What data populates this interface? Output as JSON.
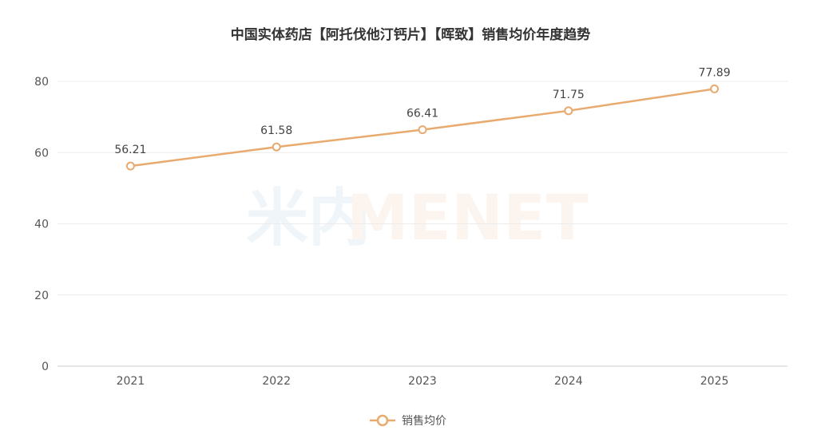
{
  "chart_data": {
    "type": "line",
    "title": "中国实体药店【阿托伐他汀钙片】【晖致】销售均价年度趋势",
    "categories": [
      "2021",
      "2022",
      "2023",
      "2024",
      "2025"
    ],
    "series": [
      {
        "name": "销售均价",
        "values": [
          56.21,
          61.58,
          66.41,
          71.75,
          77.89
        ],
        "color": "#E8AA6E"
      }
    ],
    "ylim": [
      0,
      80
    ],
    "yticks": [
      0,
      20,
      40,
      60,
      80
    ],
    "grid": true,
    "legend_position": "bottom-center"
  },
  "watermark": {
    "cn": "米内",
    "en": "MENET"
  }
}
